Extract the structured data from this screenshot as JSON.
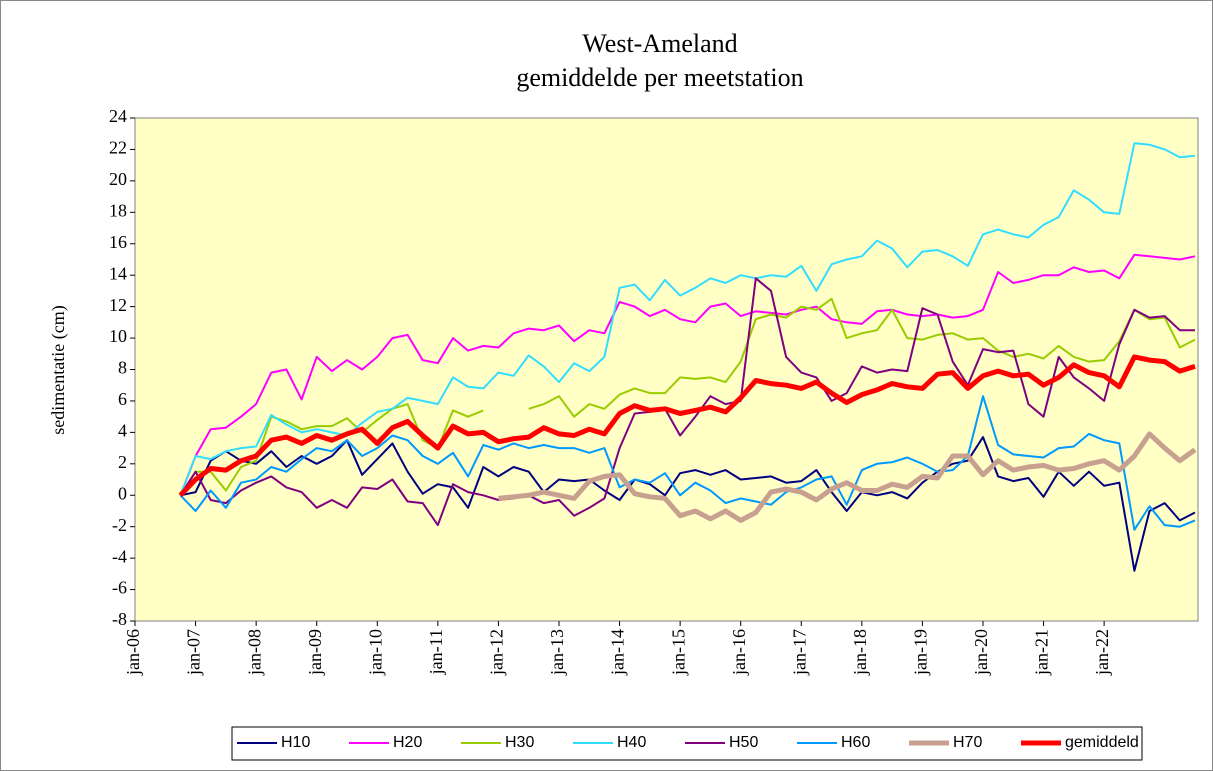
{
  "chart_data": {
    "type": "line",
    "title": [
      "West-Ameland",
      "gemiddelde per meetstation"
    ],
    "y_label": "sedimentatie (cm)",
    "xlim": [
      2006,
      2023.55
    ],
    "ylim": [
      -8,
      24
    ],
    "yticks": [
      -8,
      -6,
      -4,
      -2,
      0,
      2,
      4,
      6,
      8,
      10,
      12,
      14,
      16,
      18,
      20,
      22,
      24
    ],
    "xticks": [
      {
        "value": 2006,
        "label": "jan-06"
      },
      {
        "value": 2007,
        "label": "jan-07"
      },
      {
        "value": 2008,
        "label": "jan-08"
      },
      {
        "value": 2009,
        "label": "jan-09"
      },
      {
        "value": 2010,
        "label": "jan-10"
      },
      {
        "value": 2011,
        "label": "jan-11"
      },
      {
        "value": 2012,
        "label": "jan-12"
      },
      {
        "value": 2013,
        "label": "jan-13"
      },
      {
        "value": 2014,
        "label": "jan-14"
      },
      {
        "value": 2015,
        "label": "jan-15"
      },
      {
        "value": 2016,
        "label": "jan-16"
      },
      {
        "value": 2017,
        "label": "jan-17"
      },
      {
        "value": 2018,
        "label": "jan-18"
      },
      {
        "value": 2019,
        "label": "jan-19"
      },
      {
        "value": 2020,
        "label": "jan-20"
      },
      {
        "value": 2021,
        "label": "jan-21"
      },
      {
        "value": 2022,
        "label": "jan-22"
      }
    ],
    "grid": false,
    "legend": "bottom",
    "plot_background": "#ffffc6",
    "x": [
      2006.75,
      2007,
      2007.25,
      2007.5,
      2007.75,
      2008,
      2008.25,
      2008.5,
      2008.75,
      2009,
      2009.25,
      2009.5,
      2009.75,
      2010,
      2010.25,
      2010.5,
      2010.75,
      2011,
      2011.25,
      2011.5,
      2011.75,
      2012,
      2012.25,
      2012.5,
      2012.75,
      2013,
      2013.25,
      2013.5,
      2013.75,
      2014,
      2014.25,
      2014.5,
      2014.75,
      2015,
      2015.25,
      2015.5,
      2015.75,
      2016,
      2016.25,
      2016.5,
      2016.75,
      2017,
      2017.25,
      2017.5,
      2017.75,
      2018,
      2018.25,
      2018.5,
      2018.75,
      2019,
      2019.25,
      2019.5,
      2019.75,
      2020,
      2020.25,
      2020.5,
      2020.75,
      2021,
      2021.25,
      2021.5,
      2021.75,
      2022,
      2022.25,
      2022.5,
      2022.75,
      2023,
      2023.25,
      2023.5
    ],
    "series": [
      {
        "name": "H10",
        "color": "#000080",
        "width": 2,
        "values": [
          0,
          0.2,
          2.2,
          2.8,
          2.2,
          2.0,
          2.8,
          1.8,
          2.5,
          2.0,
          2.5,
          3.5,
          1.3,
          2.3,
          3.3,
          1.5,
          0.1,
          0.7,
          0.5,
          -0.8,
          1.8,
          1.2,
          1.8,
          1.5,
          0.2,
          1.0,
          0.9,
          1.0,
          0.3,
          -0.3,
          1.0,
          0.7,
          0.0,
          1.4,
          1.6,
          1.3,
          1.6,
          1.0,
          1.1,
          1.2,
          0.8,
          0.9,
          1.6,
          0.2,
          -1.0,
          0.2,
          0.0,
          0.2,
          -0.2,
          0.8,
          1.5,
          2.0,
          2.2,
          3.7,
          1.2,
          0.9,
          1.1,
          -0.1,
          1.5,
          0.6,
          1.5,
          0.6,
          0.8,
          -4.8,
          -1.0,
          -0.5,
          -1.6,
          -1.1
        ]
      },
      {
        "name": "H20",
        "color": "#ff00ff",
        "width": 2,
        "values": [
          0,
          2.5,
          4.2,
          4.3,
          5.0,
          5.8,
          7.8,
          8.0,
          6.1,
          8.8,
          7.9,
          8.6,
          8.0,
          8.8,
          10.0,
          10.2,
          8.6,
          8.4,
          10.0,
          9.2,
          9.5,
          9.4,
          10.3,
          10.6,
          10.5,
          10.8,
          9.8,
          10.5,
          10.3,
          12.3,
          12.0,
          11.4,
          11.8,
          11.2,
          11.0,
          12.0,
          12.2,
          11.4,
          11.7,
          11.6,
          11.5,
          11.8,
          12.0,
          11.2,
          11.0,
          10.9,
          11.7,
          11.8,
          11.5,
          11.4,
          11.5,
          11.3,
          11.4,
          11.8,
          14.2,
          13.5,
          13.7,
          14.0,
          14.0,
          14.5,
          14.2,
          14.3,
          13.8,
          15.3,
          15.2,
          15.1,
          15.0,
          15.2
        ]
      },
      {
        "name": "H30",
        "color": "#99cc00",
        "width": 2,
        "values": [
          0,
          1.5,
          1.5,
          0.3,
          1.8,
          2.2,
          5.0,
          4.7,
          4.2,
          4.4,
          4.4,
          4.9,
          4.0,
          4.8,
          5.5,
          5.8,
          3.5,
          3.0,
          5.4,
          5.0,
          5.4,
          null,
          null,
          5.5,
          5.8,
          6.3,
          5.0,
          5.8,
          5.5,
          6.4,
          6.8,
          6.5,
          6.5,
          7.5,
          7.4,
          7.5,
          7.2,
          8.5,
          11.2,
          11.5,
          11.3,
          12.0,
          11.8,
          12.5,
          10.0,
          10.3,
          10.5,
          11.8,
          10.0,
          9.9,
          10.2,
          10.3,
          9.9,
          10.0,
          9.2,
          8.8,
          9.0,
          8.7,
          9.5,
          8.8,
          8.5,
          8.6,
          9.8,
          11.8,
          11.2,
          11.3,
          9.4,
          9.9
        ]
      },
      {
        "name": "H40",
        "color": "#33ddff",
        "width": 2,
        "values": [
          0,
          2.5,
          2.3,
          2.8,
          3.0,
          3.1,
          5.1,
          4.5,
          4.0,
          4.2,
          4.0,
          3.8,
          4.6,
          5.3,
          5.5,
          6.2,
          6.0,
          5.8,
          7.5,
          6.9,
          6.8,
          7.8,
          7.6,
          8.9,
          8.2,
          7.2,
          8.4,
          7.9,
          8.8,
          13.2,
          13.4,
          12.4,
          13.7,
          12.7,
          13.2,
          13.8,
          13.5,
          14.0,
          13.8,
          14.0,
          13.9,
          14.6,
          13.0,
          14.7,
          15.0,
          15.2,
          16.2,
          15.7,
          14.5,
          15.5,
          15.6,
          15.2,
          14.6,
          16.6,
          16.9,
          16.6,
          16.4,
          17.2,
          17.7,
          19.4,
          18.8,
          18.0,
          17.9,
          22.4,
          22.3,
          22.0,
          21.5,
          21.6
        ]
      },
      {
        "name": "H50",
        "color": "#800080",
        "width": 2,
        "values": [
          0,
          1.5,
          -0.3,
          -0.5,
          0.3,
          0.8,
          1.2,
          0.5,
          0.2,
          -0.8,
          -0.3,
          -0.8,
          0.5,
          0.4,
          1.0,
          -0.4,
          -0.5,
          -1.9,
          0.7,
          0.2,
          0.0,
          -0.3,
          -0.2,
          0.0,
          -0.5,
          -0.3,
          -1.3,
          -0.8,
          -0.2,
          3.0,
          5.2,
          5.3,
          5.5,
          3.8,
          5.0,
          6.3,
          5.8,
          6.0,
          13.8,
          13.0,
          8.8,
          7.8,
          7.5,
          6.0,
          6.5,
          8.2,
          7.8,
          8.0,
          7.9,
          11.9,
          11.5,
          8.5,
          7.0,
          9.3,
          9.1,
          9.2,
          5.8,
          5.0,
          8.8,
          7.5,
          6.8,
          6.0,
          9.6,
          11.8,
          11.3,
          11.4,
          10.5,
          10.5
        ]
      },
      {
        "name": "H60",
        "color": "#0099ff",
        "width": 2,
        "values": [
          0,
          -1.0,
          0.3,
          -0.8,
          0.8,
          1.0,
          1.8,
          1.5,
          2.3,
          3.0,
          2.8,
          3.5,
          2.5,
          3.0,
          3.8,
          3.5,
          2.5,
          2.0,
          2.7,
          1.2,
          3.2,
          2.9,
          3.3,
          3.0,
          3.2,
          3.0,
          3.0,
          2.7,
          3.0,
          0.5,
          1.0,
          0.8,
          1.4,
          0.0,
          0.8,
          0.3,
          -0.5,
          -0.2,
          -0.4,
          -0.6,
          0.2,
          0.5,
          1.0,
          1.2,
          -0.6,
          1.6,
          2.0,
          2.1,
          2.4,
          2.0,
          1.5,
          1.6,
          2.5,
          6.3,
          3.2,
          2.6,
          2.5,
          2.4,
          3.0,
          3.1,
          3.9,
          3.5,
          3.3,
          -2.2,
          -0.7,
          -1.9,
          -2.0,
          -1.6
        ]
      },
      {
        "name": "H70",
        "color": "#c8a090",
        "width": 5,
        "values": [
          null,
          null,
          null,
          null,
          null,
          null,
          null,
          null,
          null,
          null,
          null,
          null,
          null,
          null,
          null,
          null,
          null,
          null,
          null,
          null,
          null,
          -0.2,
          -0.1,
          0.0,
          0.2,
          0.0,
          -0.2,
          0.9,
          1.2,
          1.3,
          0.1,
          -0.1,
          -0.2,
          -1.3,
          -1.0,
          -1.5,
          -1.0,
          -1.6,
          -1.1,
          0.2,
          0.4,
          0.2,
          -0.3,
          0.4,
          0.8,
          0.3,
          0.3,
          0.7,
          0.5,
          1.2,
          1.1,
          2.5,
          2.5,
          1.3,
          2.2,
          1.6,
          1.8,
          1.9,
          1.6,
          1.7,
          2.0,
          2.2,
          1.6,
          2.5,
          3.9,
          3.0,
          2.2,
          2.9
        ]
      },
      {
        "name": "gemiddeld",
        "color": "#ff0000",
        "width": 5,
        "values": [
          0,
          1.0,
          1.7,
          1.6,
          2.2,
          2.5,
          3.5,
          3.7,
          3.3,
          3.8,
          3.5,
          3.9,
          4.2,
          3.3,
          4.3,
          4.7,
          3.8,
          3.0,
          4.4,
          3.9,
          4.0,
          3.4,
          3.6,
          3.7,
          4.3,
          3.9,
          3.8,
          4.2,
          3.9,
          5.2,
          5.7,
          5.4,
          5.5,
          5.2,
          5.4,
          5.6,
          5.3,
          6.2,
          7.3,
          7.1,
          7.0,
          6.8,
          7.2,
          6.5,
          5.9,
          6.4,
          6.7,
          7.1,
          6.9,
          6.8,
          7.7,
          7.8,
          6.8,
          7.6,
          7.9,
          7.6,
          7.7,
          7.0,
          7.5,
          8.3,
          7.8,
          7.6,
          6.9,
          8.8,
          8.6,
          8.5,
          7.9,
          8.2
        ]
      }
    ]
  }
}
